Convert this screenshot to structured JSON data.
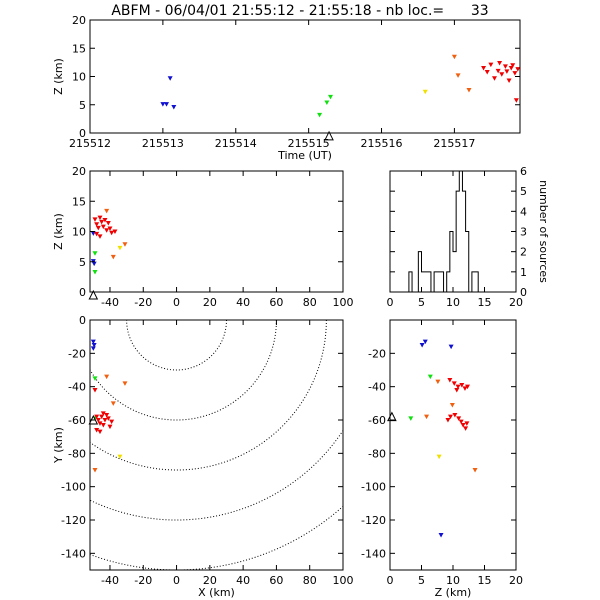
{
  "title": "ABFM - 06/04/01 21:55:12 - 21:55:18 - nb loc.=      33",
  "colors": {
    "blue": "#1010d0",
    "green": "#10e010",
    "yellow": "#f0e000",
    "orange": "#f06010",
    "red": "#f00000",
    "axis": "#000000"
  },
  "chart_data": [
    {
      "id": "time-height",
      "type": "scatter",
      "xlabel": "Time (UT)",
      "ylabel": "Z (km)",
      "xlim": [
        215512,
        215517.9
      ],
      "ylim": [
        0,
        20
      ],
      "xticks": [
        215512,
        215513,
        215514,
        215515,
        215516,
        215517
      ],
      "yticks": [
        0,
        5,
        10,
        15,
        20
      ],
      "station_marker": {
        "x": 215515.28,
        "y": -0.5
      },
      "points": [
        {
          "x": 215513.0,
          "y": 5.1,
          "c": "blue"
        },
        {
          "x": 215513.05,
          "y": 5.1,
          "c": "blue"
        },
        {
          "x": 215513.1,
          "y": 9.7,
          "c": "blue"
        },
        {
          "x": 215513.15,
          "y": 4.6,
          "c": "blue"
        },
        {
          "x": 215515.15,
          "y": 3.2,
          "c": "green"
        },
        {
          "x": 215515.25,
          "y": 5.4,
          "c": "green"
        },
        {
          "x": 215515.3,
          "y": 6.4,
          "c": "green"
        },
        {
          "x": 215516.6,
          "y": 7.3,
          "c": "yellow"
        },
        {
          "x": 215517.0,
          "y": 13.5,
          "c": "orange"
        },
        {
          "x": 215517.05,
          "y": 10.2,
          "c": "orange"
        },
        {
          "x": 215517.2,
          "y": 7.6,
          "c": "orange"
        },
        {
          "x": 215517.4,
          "y": 11.5,
          "c": "red"
        },
        {
          "x": 215517.45,
          "y": 10.8,
          "c": "red"
        },
        {
          "x": 215517.5,
          "y": 12.1,
          "c": "red"
        },
        {
          "x": 215517.55,
          "y": 9.7,
          "c": "red"
        },
        {
          "x": 215517.6,
          "y": 11.0,
          "c": "red"
        },
        {
          "x": 215517.62,
          "y": 12.4,
          "c": "red"
        },
        {
          "x": 215517.65,
          "y": 10.4,
          "c": "red"
        },
        {
          "x": 215517.7,
          "y": 11.8,
          "c": "red"
        },
        {
          "x": 215517.72,
          "y": 10.9,
          "c": "red"
        },
        {
          "x": 215517.75,
          "y": 9.3,
          "c": "red"
        },
        {
          "x": 215517.78,
          "y": 11.5,
          "c": "red"
        },
        {
          "x": 215517.8,
          "y": 12.0,
          "c": "red"
        },
        {
          "x": 215517.83,
          "y": 10.6,
          "c": "red"
        },
        {
          "x": 215517.85,
          "y": 5.8,
          "c": "red"
        },
        {
          "x": 215517.87,
          "y": 11.3,
          "c": "red"
        }
      ]
    },
    {
      "id": "x-height",
      "type": "scatter",
      "xlabel": "",
      "ylabel": "Z (km)",
      "xlim": [
        -52,
        100
      ],
      "ylim": [
        0,
        20
      ],
      "xticks": [
        -40,
        -20,
        0,
        20,
        40,
        60,
        80,
        100
      ],
      "yticks": [
        0,
        5,
        10,
        15,
        20
      ],
      "station_marker": {
        "x": -50,
        "y": -0.5
      },
      "points": [
        {
          "x": -50,
          "y": 5.1,
          "c": "blue"
        },
        {
          "x": -49.5,
          "y": 4.7,
          "c": "blue"
        },
        {
          "x": -50,
          "y": 9.7,
          "c": "blue"
        },
        {
          "x": -49,
          "y": 3.3,
          "c": "green"
        },
        {
          "x": -49,
          "y": 6.4,
          "c": "green"
        },
        {
          "x": -34,
          "y": 7.3,
          "c": "yellow"
        },
        {
          "x": -42,
          "y": 13.4,
          "c": "orange"
        },
        {
          "x": -31,
          "y": 7.9,
          "c": "orange"
        },
        {
          "x": -38,
          "y": 5.8,
          "c": "orange"
        },
        {
          "x": -49,
          "y": 12.0,
          "c": "red"
        },
        {
          "x": -48,
          "y": 11.2,
          "c": "red"
        },
        {
          "x": -47,
          "y": 10.6,
          "c": "red"
        },
        {
          "x": -46,
          "y": 12.3,
          "c": "red"
        },
        {
          "x": -45,
          "y": 11.6,
          "c": "red"
        },
        {
          "x": -44,
          "y": 10.8,
          "c": "red"
        },
        {
          "x": -43,
          "y": 11.9,
          "c": "red"
        },
        {
          "x": -42,
          "y": 10.2,
          "c": "red"
        },
        {
          "x": -41,
          "y": 11.4,
          "c": "red"
        },
        {
          "x": -40,
          "y": 10.5,
          "c": "red"
        },
        {
          "x": -39,
          "y": 9.8,
          "c": "red"
        },
        {
          "x": -37,
          "y": 10.0,
          "c": "red"
        },
        {
          "x": -48,
          "y": 9.6,
          "c": "red"
        },
        {
          "x": -46,
          "y": 9.2,
          "c": "red"
        }
      ]
    },
    {
      "id": "height-histogram",
      "type": "histogram",
      "xlabel": "",
      "ylabel": "number of sources",
      "xlim": [
        0,
        20
      ],
      "ylim": [
        0,
        6
      ],
      "xticks": [
        0,
        5,
        10,
        15,
        20
      ],
      "yticks": [
        0,
        1,
        2,
        3,
        4,
        5,
        6
      ],
      "bin_width": 0.5,
      "bins": [
        {
          "x": 3.0,
          "count": 1
        },
        {
          "x": 3.5,
          "count": 0
        },
        {
          "x": 4.0,
          "count": 0
        },
        {
          "x": 4.5,
          "count": 2
        },
        {
          "x": 5.0,
          "count": 1
        },
        {
          "x": 5.5,
          "count": 1
        },
        {
          "x": 6.0,
          "count": 1
        },
        {
          "x": 6.5,
          "count": 0
        },
        {
          "x": 7.0,
          "count": 1
        },
        {
          "x": 7.5,
          "count": 1
        },
        {
          "x": 8.0,
          "count": 1
        },
        {
          "x": 8.5,
          "count": 0
        },
        {
          "x": 9.0,
          "count": 1
        },
        {
          "x": 9.5,
          "count": 3
        },
        {
          "x": 10.0,
          "count": 2
        },
        {
          "x": 10.5,
          "count": 5
        },
        {
          "x": 11.0,
          "count": 6
        },
        {
          "x": 11.5,
          "count": 5
        },
        {
          "x": 12.0,
          "count": 3
        },
        {
          "x": 12.5,
          "count": 0
        },
        {
          "x": 13.0,
          "count": 1
        },
        {
          "x": 13.5,
          "count": 1
        }
      ]
    },
    {
      "id": "plan-view",
      "type": "scatter",
      "xlabel": "X (km)",
      "ylabel": "Y (km)",
      "xlim": [
        -52,
        100
      ],
      "ylim": [
        -150,
        0
      ],
      "xticks": [
        -40,
        -20,
        0,
        20,
        40,
        60,
        80,
        100
      ],
      "yticks": [
        0,
        -20,
        -40,
        -60,
        -80,
        -100,
        -120,
        -140
      ],
      "range_rings": {
        "center": [
          0,
          0
        ],
        "radii": [
          30,
          60,
          90,
          120,
          150
        ]
      },
      "station_marker": {
        "x": -50,
        "y": -60
      },
      "points": [
        {
          "x": -50,
          "y": -13,
          "c": "blue"
        },
        {
          "x": -49.5,
          "y": -15,
          "c": "blue"
        },
        {
          "x": -50,
          "y": -17,
          "c": "blue"
        },
        {
          "x": -49,
          "y": -35,
          "c": "green"
        },
        {
          "x": -49,
          "y": -59,
          "c": "green"
        },
        {
          "x": -34,
          "y": -82,
          "c": "yellow"
        },
        {
          "x": -42,
          "y": -34,
          "c": "orange"
        },
        {
          "x": -31,
          "y": -38,
          "c": "orange"
        },
        {
          "x": -38,
          "y": -50,
          "c": "orange"
        },
        {
          "x": -49,
          "y": -90,
          "c": "orange"
        },
        {
          "x": -49,
          "y": -42,
          "c": "red"
        },
        {
          "x": -48,
          "y": -58,
          "c": "red"
        },
        {
          "x": -47,
          "y": -60,
          "c": "red"
        },
        {
          "x": -46,
          "y": -62,
          "c": "red"
        },
        {
          "x": -45,
          "y": -58,
          "c": "red"
        },
        {
          "x": -44,
          "y": -63,
          "c": "red"
        },
        {
          "x": -43,
          "y": -60,
          "c": "red"
        },
        {
          "x": -42,
          "y": -57,
          "c": "red"
        },
        {
          "x": -41,
          "y": -59,
          "c": "red"
        },
        {
          "x": -40,
          "y": -64,
          "c": "red"
        },
        {
          "x": -39,
          "y": -61,
          "c": "red"
        },
        {
          "x": -48,
          "y": -66,
          "c": "red"
        },
        {
          "x": -46,
          "y": -67,
          "c": "red"
        },
        {
          "x": -44,
          "y": -56,
          "c": "red"
        }
      ]
    },
    {
      "id": "height-y",
      "type": "scatter",
      "xlabel": "Z (km)",
      "ylabel": "",
      "xlim": [
        0,
        20
      ],
      "ylim": [
        -150,
        0
      ],
      "xticks": [
        0,
        5,
        10,
        15,
        20
      ],
      "yticks": [
        -20,
        -40,
        -60,
        -80,
        -100,
        -120,
        -140
      ],
      "station_marker": {
        "x": 0.3,
        "y": -58
      },
      "points": [
        {
          "x": 5.1,
          "y": -15,
          "c": "blue"
        },
        {
          "x": 5.6,
          "y": -13,
          "c": "blue"
        },
        {
          "x": 9.7,
          "y": -16,
          "c": "blue"
        },
        {
          "x": 6.4,
          "y": -34,
          "c": "green"
        },
        {
          "x": 3.3,
          "y": -59,
          "c": "green"
        },
        {
          "x": 7.8,
          "y": -82,
          "c": "yellow"
        },
        {
          "x": 7.6,
          "y": -37,
          "c": "orange"
        },
        {
          "x": 5.8,
          "y": -58,
          "c": "orange"
        },
        {
          "x": 9.9,
          "y": -51,
          "c": "orange"
        },
        {
          "x": 13.5,
          "y": -90,
          "c": "orange"
        },
        {
          "x": 9.5,
          "y": -36,
          "c": "red"
        },
        {
          "x": 10.2,
          "y": -38,
          "c": "red"
        },
        {
          "x": 10.8,
          "y": -40,
          "c": "red"
        },
        {
          "x": 11.4,
          "y": -39,
          "c": "red"
        },
        {
          "x": 11.9,
          "y": -41,
          "c": "red"
        },
        {
          "x": 12.3,
          "y": -40,
          "c": "red"
        },
        {
          "x": 9.6,
          "y": -58,
          "c": "red"
        },
        {
          "x": 10.3,
          "y": -57,
          "c": "red"
        },
        {
          "x": 10.9,
          "y": -59,
          "c": "red"
        },
        {
          "x": 11.3,
          "y": -61,
          "c": "red"
        },
        {
          "x": 11.6,
          "y": -63,
          "c": "red"
        },
        {
          "x": 12.0,
          "y": -65,
          "c": "red"
        },
        {
          "x": 12.2,
          "y": -62,
          "c": "red"
        },
        {
          "x": 9.2,
          "y": -60,
          "c": "red"
        },
        {
          "x": 10.6,
          "y": -42,
          "c": "red"
        },
        {
          "x": 8.1,
          "y": -129,
          "c": "blue"
        }
      ]
    }
  ]
}
